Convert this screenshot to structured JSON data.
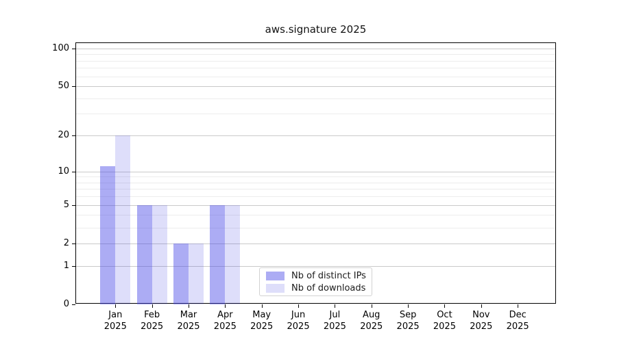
{
  "chart_data": {
    "type": "bar",
    "title": "aws.signature 2025",
    "x_categories": [
      {
        "month": "Jan",
        "year": "2025"
      },
      {
        "month": "Feb",
        "year": "2025"
      },
      {
        "month": "Mar",
        "year": "2025"
      },
      {
        "month": "Apr",
        "year": "2025"
      },
      {
        "month": "May",
        "year": "2025"
      },
      {
        "month": "Jun",
        "year": "2025"
      },
      {
        "month": "Jul",
        "year": "2025"
      },
      {
        "month": "Aug",
        "year": "2025"
      },
      {
        "month": "Sep",
        "year": "2025"
      },
      {
        "month": "Oct",
        "year": "2025"
      },
      {
        "month": "Nov",
        "year": "2025"
      },
      {
        "month": "Dec",
        "year": "2025"
      }
    ],
    "series": [
      {
        "name": "Nb of distinct IPs",
        "color": "rgba(70,70,230,0.45)",
        "values": [
          11,
          5,
          2,
          5,
          null,
          null,
          null,
          null,
          null,
          null,
          null,
          null
        ]
      },
      {
        "name": "Nb of downloads",
        "color": "rgba(70,70,230,0.18)",
        "values": [
          20,
          5,
          2,
          5,
          null,
          null,
          null,
          null,
          null,
          null,
          null,
          null
        ]
      }
    ],
    "y_axis": {
      "scale": "log1p",
      "ticks": [
        0,
        1,
        2,
        5,
        10,
        20,
        50,
        100
      ],
      "minor_gridlines": [
        3,
        4,
        6,
        7,
        8,
        9,
        30,
        40,
        60,
        70,
        80,
        90
      ],
      "ylim": [
        0,
        110
      ]
    },
    "xlabel": "",
    "ylabel": "",
    "grid": true,
    "legend_position": "inside-bottom-center"
  }
}
